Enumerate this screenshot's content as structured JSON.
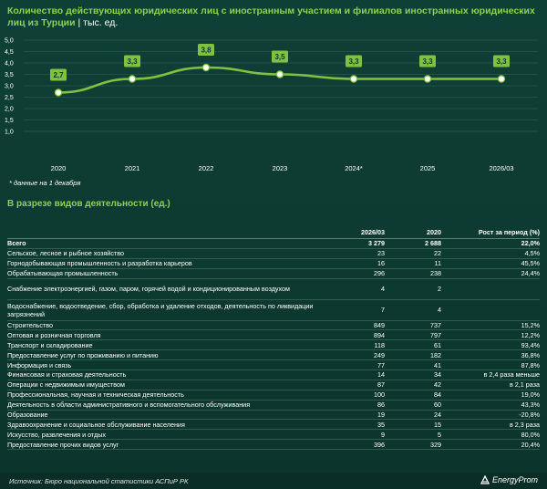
{
  "header": {
    "title": "Количество действующих юридических лиц с иностранным участием и филиалов иностранных юридических лиц из Турции",
    "unit": "| тыс. ед."
  },
  "chart_data": {
    "type": "line",
    "categories": [
      "2020",
      "2021",
      "2022",
      "2023",
      "2024*",
      "2025",
      "2026/03"
    ],
    "values": [
      2.7,
      3.3,
      3.8,
      3.5,
      3.3,
      3.3,
      3.3
    ],
    "data_labels": [
      "2,7",
      "3,3",
      "3,8",
      "3,5",
      "3,3",
      "3,3",
      "3,3"
    ],
    "y_ticks": [
      "5,0",
      "4,5",
      "4,0",
      "3,5",
      "3,0",
      "2,5",
      "2,0",
      "1,5",
      "1,0"
    ],
    "ylim": [
      1.0,
      5.0
    ],
    "grid": true,
    "colors": {
      "line": "#7fc241",
      "label_bg": "#7fc241",
      "marker": "#ffffff"
    }
  },
  "note": "* данные на 1 декабря",
  "section_title": "В разрезе видов деятельности (ед.)",
  "table": {
    "headers": [
      "",
      "2026/03",
      "2020",
      "Рост за период (%)"
    ],
    "rows": [
      {
        "name": "Всего",
        "a": "3 279",
        "b": "2 688",
        "c": "22,0%"
      },
      {
        "name": "Сельское, лесное и рыбное хозяйство",
        "a": "23",
        "b": "22",
        "c": "4,5%"
      },
      {
        "name": "Горнодобывающая промышленность и разработка карьеров",
        "a": "16",
        "b": "11",
        "c": "45,5%"
      },
      {
        "name": "Обрабатывающая промышленность",
        "a": "296",
        "b": "238",
        "c": "24,4%"
      },
      {
        "name": "Снабжение электроэнергией, газом, паром, горячей водой и кондиционированным воздухом",
        "a": "4",
        "b": "2",
        "c": ""
      },
      {
        "name": "Водоснабжение, водоотведение, сбор, обработка и удаление отходов, деятельность по ликвидации загрязнений",
        "a": "7",
        "b": "4",
        "c": ""
      },
      {
        "name": "Строительство",
        "a": "849",
        "b": "737",
        "c": "15,2%"
      },
      {
        "name": "Оптовая и розничная торговля",
        "a": "894",
        "b": "797",
        "c": "12,2%"
      },
      {
        "name": "Транспорт и складирование",
        "a": "118",
        "b": "61",
        "c": "93,4%"
      },
      {
        "name": "Предоставление услуг по проживанию и питанию",
        "a": "249",
        "b": "182",
        "c": "36,8%"
      },
      {
        "name": "Информация и связь",
        "a": "77",
        "b": "41",
        "c": "87,8%"
      },
      {
        "name": "Финансовая и страховая деятельность",
        "a": "14",
        "b": "34",
        "c": "в 2,4 раза меньше"
      },
      {
        "name": "Операции с недвижимым имуществом",
        "a": "87",
        "b": "42",
        "c": "в 2,1 раза"
      },
      {
        "name": "Профессиональная, научная и техническая деятельность",
        "a": "100",
        "b": "84",
        "c": "19,0%"
      },
      {
        "name": "Деятельность в области административного и вспомогательного обслуживания",
        "a": "86",
        "b": "60",
        "c": "43,3%"
      },
      {
        "name": "Образование",
        "a": "19",
        "b": "24",
        "c": "-20,8%"
      },
      {
        "name": "Здравоохранение и социальное обслуживание населения",
        "a": "35",
        "b": "15",
        "c": "в 2,3 раза"
      },
      {
        "name": "Искусство, развлечения и отдых",
        "a": "9",
        "b": "5",
        "c": "80,0%"
      },
      {
        "name": "Предоставление прочих видов услуг",
        "a": "396",
        "b": "329",
        "c": "20,4%"
      }
    ]
  },
  "footer": {
    "source": "Источник: Бюро национальной статистики АСПиР РК",
    "logo": "EnergyProm"
  }
}
